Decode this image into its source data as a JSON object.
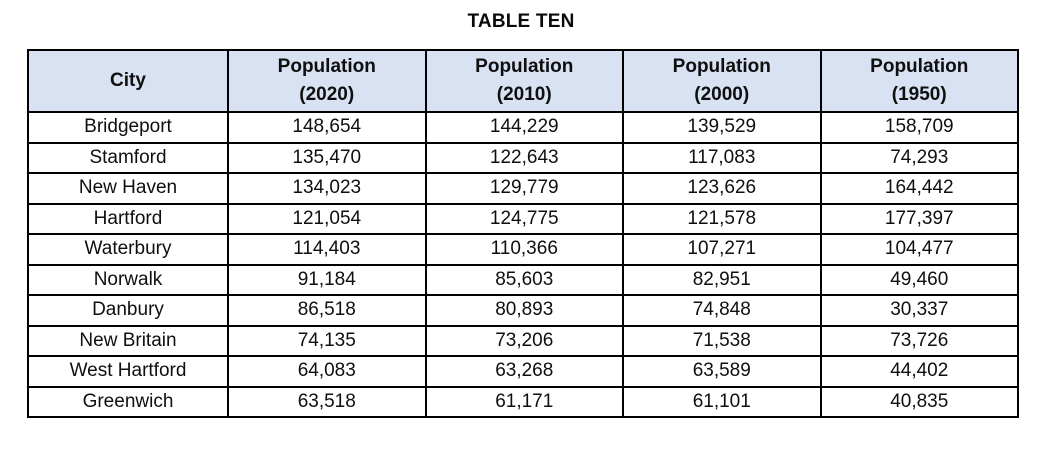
{
  "title": "TABLE TEN",
  "colors": {
    "header_bg": "#D9E2F3",
    "border": "#000000",
    "text": "#0f0f0f",
    "page_bg": "#ffffff"
  },
  "table": {
    "columns": [
      "City",
      "Population\n(2020)",
      "Population\n(2010)",
      "Population\n(2000)",
      "Population\n(1950)"
    ],
    "rows": [
      [
        "Bridgeport",
        "148,654",
        "144,229",
        "139,529",
        "158,709"
      ],
      [
        "Stamford",
        "135,470",
        "122,643",
        "117,083",
        "74,293"
      ],
      [
        "New Haven",
        "134,023",
        "129,779",
        "123,626",
        "164,442"
      ],
      [
        "Hartford",
        "121,054",
        "124,775",
        "121,578",
        "177,397"
      ],
      [
        "Waterbury",
        "114,403",
        "110,366",
        "107,271",
        "104,477"
      ],
      [
        "Norwalk",
        "91,184",
        "85,603",
        "82,951",
        "49,460"
      ],
      [
        "Danbury",
        "86,518",
        "80,893",
        "74,848",
        "30,337"
      ],
      [
        "New Britain",
        "74,135",
        "73,206",
        "71,538",
        "73,726"
      ],
      [
        "West Hartford",
        "64,083",
        "63,268",
        "63,589",
        "44,402"
      ],
      [
        "Greenwich",
        "63,518",
        "61,171",
        "61,101",
        "40,835"
      ]
    ]
  }
}
